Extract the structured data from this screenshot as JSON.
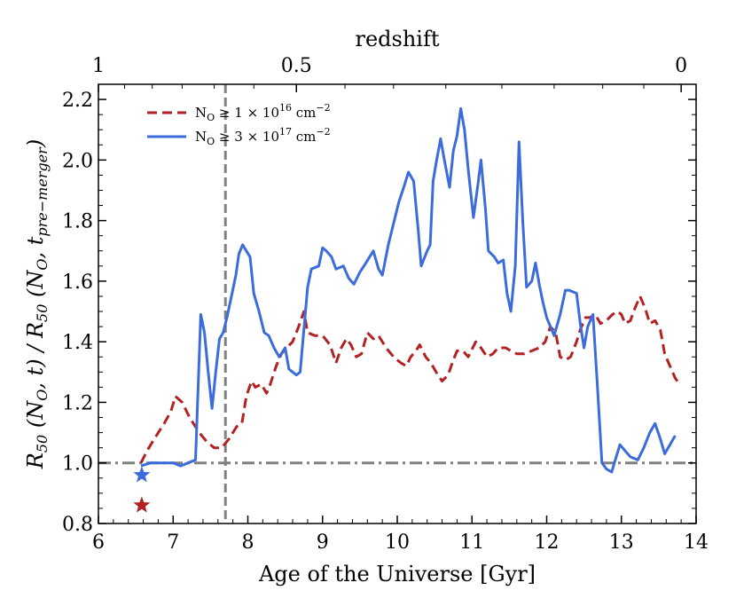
{
  "chart_data": {
    "type": "line",
    "xlabel": "Age of the Universe [Gyr]",
    "ylabel_parts": {
      "main": "R",
      "main_sub": "50",
      "numer": " (N",
      "numer_sub": "O",
      "numer_end": ", t) / ",
      "denom_main": "R",
      "denom_main_sub": "50",
      "denom": " (N",
      "denom_sub": "O",
      "denom_mid": ", t",
      "denom_t_sub": "pre−merger",
      "denom_end": ")"
    },
    "top_xlabel": "redshift",
    "xlim": [
      6,
      14
    ],
    "ylim": [
      0.8,
      2.25
    ],
    "xticks": [
      6,
      7,
      8,
      9,
      10,
      11,
      12,
      13,
      14
    ],
    "yticks": [
      0.8,
      1.0,
      1.2,
      1.4,
      1.6,
      1.8,
      2.0,
      2.2
    ],
    "top_ticks": [
      {
        "label": "1",
        "age": 6.0
      },
      {
        "label": "0.5",
        "age": 8.65
      },
      {
        "label": "0",
        "age": 13.8
      }
    ],
    "top_minor_ages": [
      6.35,
      6.72,
      7.12,
      7.55,
      8.08,
      9.3,
      9.95,
      10.65,
      11.4,
      12.1,
      12.75,
      13.3
    ],
    "reference_lines": {
      "horizontal_y": 1.0,
      "vertical_x": 7.7
    },
    "legend": {
      "placement": "top-left",
      "entries": [
        {
          "label_main": "N",
          "label_sub": "O",
          "label_rest": " ≥ 1 × 10",
          "label_exp": "16",
          "label_unit": " cm",
          "label_unit_exp": "−2",
          "series": 0
        },
        {
          "label_main": "N",
          "label_sub": "O",
          "label_rest": " ≥ 3 × 10",
          "label_exp": "17",
          "label_unit": " cm",
          "label_unit_exp": "−2",
          "series": 1
        }
      ]
    },
    "series": [
      {
        "name": "NO ≥ 1 × 10^16 cm^-2",
        "color": "#b22222",
        "style": "dashed",
        "points": [
          [
            6.57,
            1.0
          ],
          [
            6.65,
            1.04
          ],
          [
            6.75,
            1.08
          ],
          [
            6.88,
            1.13
          ],
          [
            6.97,
            1.17
          ],
          [
            7.03,
            1.22
          ],
          [
            7.12,
            1.2
          ],
          [
            7.22,
            1.15
          ],
          [
            7.35,
            1.1
          ],
          [
            7.45,
            1.07
          ],
          [
            7.55,
            1.05
          ],
          [
            7.65,
            1.05
          ],
          [
            7.75,
            1.08
          ],
          [
            7.85,
            1.12
          ],
          [
            7.92,
            1.13
          ],
          [
            7.98,
            1.22
          ],
          [
            8.05,
            1.27
          ],
          [
            8.1,
            1.25
          ],
          [
            8.18,
            1.26
          ],
          [
            8.25,
            1.23
          ],
          [
            8.3,
            1.26
          ],
          [
            8.38,
            1.32
          ],
          [
            8.45,
            1.36
          ],
          [
            8.52,
            1.38
          ],
          [
            8.6,
            1.4
          ],
          [
            8.68,
            1.45
          ],
          [
            8.75,
            1.5
          ],
          [
            8.8,
            1.43
          ],
          [
            8.9,
            1.42
          ],
          [
            9.0,
            1.42
          ],
          [
            9.1,
            1.39
          ],
          [
            9.18,
            1.33
          ],
          [
            9.25,
            1.38
          ],
          [
            9.32,
            1.41
          ],
          [
            9.38,
            1.39
          ],
          [
            9.45,
            1.35
          ],
          [
            9.52,
            1.36
          ],
          [
            9.6,
            1.43
          ],
          [
            9.68,
            1.41
          ],
          [
            9.75,
            1.42
          ],
          [
            9.85,
            1.38
          ],
          [
            9.95,
            1.35
          ],
          [
            10.05,
            1.33
          ],
          [
            10.12,
            1.32
          ],
          [
            10.18,
            1.35
          ],
          [
            10.25,
            1.37
          ],
          [
            10.3,
            1.39
          ],
          [
            10.38,
            1.35
          ],
          [
            10.45,
            1.33
          ],
          [
            10.52,
            1.3
          ],
          [
            10.6,
            1.27
          ],
          [
            10.68,
            1.29
          ],
          [
            10.75,
            1.34
          ],
          [
            10.8,
            1.37
          ],
          [
            10.88,
            1.37
          ],
          [
            10.95,
            1.35
          ],
          [
            11.05,
            1.4
          ],
          [
            11.12,
            1.38
          ],
          [
            11.2,
            1.35
          ],
          [
            11.28,
            1.36
          ],
          [
            11.35,
            1.38
          ],
          [
            11.45,
            1.38
          ],
          [
            11.52,
            1.37
          ],
          [
            11.6,
            1.36
          ],
          [
            11.7,
            1.36
          ],
          [
            11.8,
            1.37
          ],
          [
            11.9,
            1.38
          ],
          [
            11.98,
            1.4
          ],
          [
            12.05,
            1.45
          ],
          [
            12.12,
            1.43
          ],
          [
            12.18,
            1.35
          ],
          [
            12.25,
            1.34
          ],
          [
            12.32,
            1.35
          ],
          [
            12.4,
            1.4
          ],
          [
            12.45,
            1.44
          ],
          [
            12.52,
            1.48
          ],
          [
            12.58,
            1.48
          ],
          [
            12.65,
            1.49
          ],
          [
            12.72,
            1.46
          ],
          [
            12.8,
            1.47
          ],
          [
            12.88,
            1.49
          ],
          [
            12.95,
            1.5
          ],
          [
            13.0,
            1.49
          ],
          [
            13.05,
            1.46
          ],
          [
            13.12,
            1.47
          ],
          [
            13.18,
            1.51
          ],
          [
            13.25,
            1.55
          ],
          [
            13.32,
            1.51
          ],
          [
            13.38,
            1.46
          ],
          [
            13.45,
            1.47
          ],
          [
            13.52,
            1.44
          ],
          [
            13.58,
            1.36
          ],
          [
            13.65,
            1.32
          ],
          [
            13.72,
            1.28
          ],
          [
            13.78,
            1.26
          ]
        ],
        "star_marker": {
          "x": 6.58,
          "y": 0.86
        }
      },
      {
        "name": "NO ≥ 3 × 10^17 cm^-2",
        "color": "#3c6bdc",
        "style": "solid",
        "points": [
          [
            6.57,
            0.99
          ],
          [
            6.7,
            1.0
          ],
          [
            6.85,
            1.0
          ],
          [
            7.0,
            1.0
          ],
          [
            7.1,
            0.99
          ],
          [
            7.2,
            1.0
          ],
          [
            7.3,
            1.01
          ],
          [
            7.37,
            1.49
          ],
          [
            7.42,
            1.43
          ],
          [
            7.47,
            1.3
          ],
          [
            7.52,
            1.18
          ],
          [
            7.57,
            1.3
          ],
          [
            7.62,
            1.41
          ],
          [
            7.67,
            1.43
          ],
          [
            7.72,
            1.48
          ],
          [
            7.78,
            1.55
          ],
          [
            7.84,
            1.62
          ],
          [
            7.88,
            1.69
          ],
          [
            7.93,
            1.72
          ],
          [
            7.98,
            1.7
          ],
          [
            8.03,
            1.68
          ],
          [
            8.08,
            1.56
          ],
          [
            8.15,
            1.5
          ],
          [
            8.22,
            1.43
          ],
          [
            8.28,
            1.42
          ],
          [
            8.35,
            1.38
          ],
          [
            8.42,
            1.35
          ],
          [
            8.5,
            1.38
          ],
          [
            8.55,
            1.31
          ],
          [
            8.6,
            1.3
          ],
          [
            8.65,
            1.29
          ],
          [
            8.7,
            1.3
          ],
          [
            8.75,
            1.44
          ],
          [
            8.8,
            1.58
          ],
          [
            8.85,
            1.64
          ],
          [
            8.95,
            1.65
          ],
          [
            9.0,
            1.71
          ],
          [
            9.05,
            1.7
          ],
          [
            9.12,
            1.68
          ],
          [
            9.18,
            1.64
          ],
          [
            9.28,
            1.65
          ],
          [
            9.35,
            1.61
          ],
          [
            9.42,
            1.59
          ],
          [
            9.5,
            1.63
          ],
          [
            9.58,
            1.66
          ],
          [
            9.68,
            1.7
          ],
          [
            9.75,
            1.64
          ],
          [
            9.8,
            1.62
          ],
          [
            9.88,
            1.72
          ],
          [
            9.95,
            1.79
          ],
          [
            10.02,
            1.86
          ],
          [
            10.1,
            1.92
          ],
          [
            10.15,
            1.96
          ],
          [
            10.22,
            1.93
          ],
          [
            10.28,
            1.77
          ],
          [
            10.32,
            1.65
          ],
          [
            10.4,
            1.7
          ],
          [
            10.44,
            1.72
          ],
          [
            10.48,
            1.93
          ],
          [
            10.52,
            1.99
          ],
          [
            10.58,
            2.07
          ],
          [
            10.63,
            2.0
          ],
          [
            10.7,
            1.91
          ],
          [
            10.75,
            2.03
          ],
          [
            10.8,
            2.08
          ],
          [
            10.85,
            2.17
          ],
          [
            10.9,
            2.1
          ],
          [
            10.95,
            1.97
          ],
          [
            11.02,
            1.81
          ],
          [
            11.08,
            1.92
          ],
          [
            11.12,
            2.0
          ],
          [
            11.18,
            1.84
          ],
          [
            11.22,
            1.7
          ],
          [
            11.3,
            1.68
          ],
          [
            11.35,
            1.66
          ],
          [
            11.42,
            1.67
          ],
          [
            11.47,
            1.56
          ],
          [
            11.52,
            1.5
          ],
          [
            11.58,
            1.65
          ],
          [
            11.63,
            2.06
          ],
          [
            11.68,
            1.8
          ],
          [
            11.73,
            1.58
          ],
          [
            11.8,
            1.6
          ],
          [
            11.85,
            1.66
          ],
          [
            11.9,
            1.59
          ],
          [
            11.95,
            1.53
          ],
          [
            12.0,
            1.48
          ],
          [
            12.05,
            1.45
          ],
          [
            12.1,
            1.42
          ],
          [
            12.18,
            1.49
          ],
          [
            12.25,
            1.57
          ],
          [
            12.3,
            1.57
          ],
          [
            12.4,
            1.56
          ],
          [
            12.45,
            1.46
          ],
          [
            12.5,
            1.38
          ],
          [
            12.55,
            1.45
          ],
          [
            12.62,
            1.49
          ],
          [
            12.68,
            1.25
          ],
          [
            12.74,
            1.0
          ],
          [
            12.8,
            0.98
          ],
          [
            12.87,
            0.97
          ],
          [
            12.93,
            1.02
          ],
          [
            12.98,
            1.06
          ],
          [
            13.05,
            1.04
          ],
          [
            13.12,
            1.02
          ],
          [
            13.22,
            1.01
          ],
          [
            13.3,
            1.05
          ],
          [
            13.38,
            1.1
          ],
          [
            13.45,
            1.13
          ],
          [
            13.52,
            1.08
          ],
          [
            13.58,
            1.03
          ],
          [
            13.65,
            1.06
          ],
          [
            13.72,
            1.09
          ]
        ],
        "star_marker": {
          "x": 6.58,
          "y": 0.96
        }
      }
    ]
  }
}
